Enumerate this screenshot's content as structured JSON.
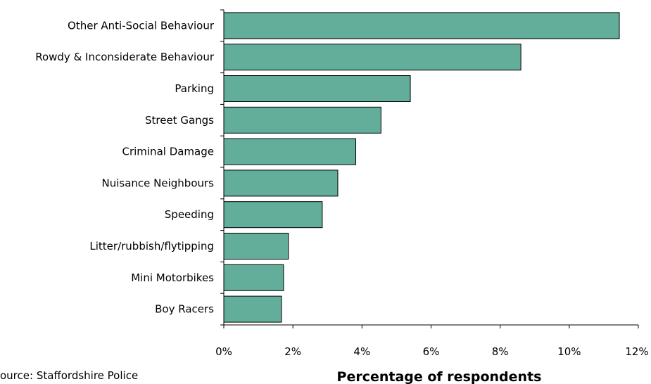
{
  "chart_data": {
    "type": "bar",
    "orientation": "horizontal",
    "categories": [
      "Other Anti-Social Behaviour",
      "Rowdy & Inconsiderate Behaviour",
      "Parking",
      "Street Gangs",
      "Criminal Damage",
      "Nuisance Neighbours",
      "Speeding",
      "Litter/rubbish/flytipping",
      "Mini Motorbikes",
      "Boy Racers"
    ],
    "values": [
      11.45,
      8.6,
      5.4,
      4.55,
      3.82,
      3.3,
      2.85,
      1.87,
      1.73,
      1.67
    ],
    "xlabel": "Percentage of respondents",
    "xlim": [
      0,
      12
    ],
    "xticks": [
      0,
      2,
      4,
      6,
      8,
      10,
      12
    ],
    "xtick_labels": [
      "0%",
      "2%",
      "4%",
      "6%",
      "8%",
      "10%",
      "12%"
    ],
    "grid": false,
    "bar_color": "#63AE9A",
    "source_note": "ource: Staffordshire Police"
  }
}
